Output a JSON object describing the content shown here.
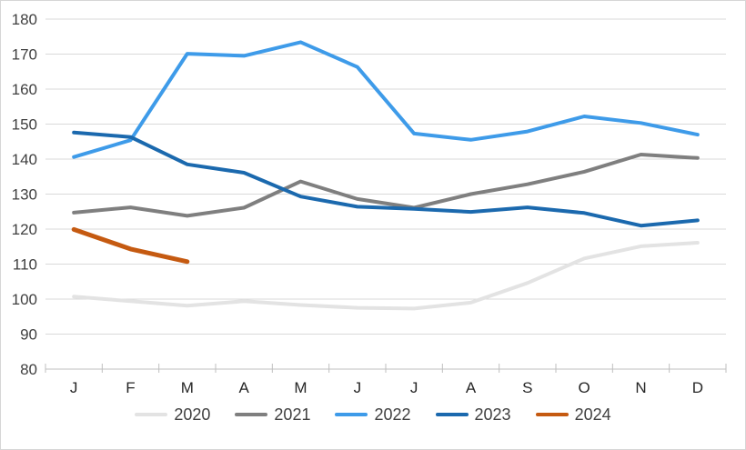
{
  "colors": {
    "background": "#FFFFFF",
    "frame_border": "#D6D6D6",
    "gridline": "#D9D9D9",
    "axis_line": "#BFBFBF",
    "tick_mark": "#BFBFBF",
    "y_label": "#404040",
    "x_label": "#262626",
    "legend_text": "#404040"
  },
  "chart_data": {
    "type": "line",
    "title": "",
    "xlabel": "",
    "ylabel": "",
    "ylim": [
      80,
      180
    ],
    "yticks": [
      80,
      90,
      100,
      110,
      120,
      130,
      140,
      150,
      160,
      170,
      180
    ],
    "grid": true,
    "legend_position": "bottom",
    "categories": [
      "J",
      "F",
      "M",
      "A",
      "M",
      "J",
      "J",
      "A",
      "S",
      "O",
      "N",
      "D"
    ],
    "series": [
      {
        "name": "2020",
        "color": "#E3E3E3",
        "line_width": 4,
        "values": [
          100.7,
          99.4,
          98.1,
          99.4,
          98.3,
          97.5,
          97.3,
          99.0,
          104.6,
          111.6,
          115.1,
          116.1
        ]
      },
      {
        "name": "2021",
        "color": "#7F7F7F",
        "line_width": 4,
        "values": [
          124.7,
          126.2,
          123.8,
          126.1,
          133.6,
          128.6,
          126.1,
          130.0,
          132.8,
          136.4,
          141.3,
          140.3
        ]
      },
      {
        "name": "2022",
        "color": "#3E9BE9",
        "line_width": 4,
        "values": [
          140.6,
          145.4,
          170.1,
          169.5,
          173.4,
          166.3,
          147.3,
          145.5,
          147.9,
          152.2,
          150.3,
          147.0
        ]
      },
      {
        "name": "2023",
        "color": "#1B69AE",
        "line_width": 4,
        "values": [
          147.6,
          146.3,
          138.5,
          136.1,
          129.3,
          126.4,
          125.8,
          124.9,
          126.2,
          124.6,
          121.0,
          122.5
        ]
      },
      {
        "name": "2024",
        "color": "#C55A11",
        "line_width": 5,
        "values": [
          119.9,
          114.3,
          110.7
        ]
      }
    ]
  }
}
